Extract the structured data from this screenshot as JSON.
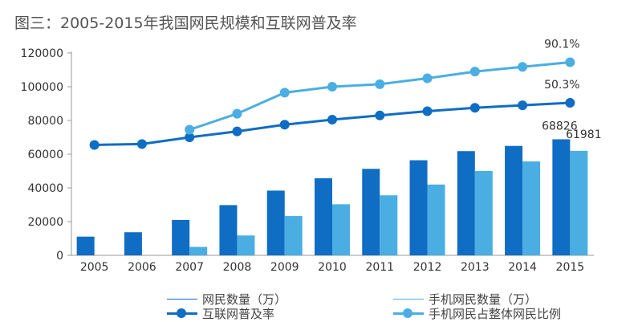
{
  "title": "图三：2005-2015年我国网民规模和互联网普及率",
  "colors": {
    "dark_blue": "#0F6DC4",
    "light_blue": "#4AAEE2",
    "axis": "#9a9a9a",
    "grid": "#e6e6e6",
    "text": "#333333"
  },
  "chart_data": {
    "type": "bar",
    "categories": [
      "2005",
      "2006",
      "2007",
      "2008",
      "2009",
      "2010",
      "2011",
      "2012",
      "2013",
      "2014",
      "2015"
    ],
    "ylim": [
      0,
      120000
    ],
    "yticks": [
      0,
      20000,
      40000,
      60000,
      80000,
      100000,
      120000
    ],
    "grid": false,
    "legend_position": "bottom",
    "series": [
      {
        "name": "网民数量（万）",
        "kind": "bar",
        "color": "#0F6DC4",
        "values": [
          11100,
          13700,
          21000,
          29800,
          38400,
          45700,
          51300,
          56400,
          61800,
          64900,
          68826
        ]
      },
      {
        "name": "手机网民数量（万）",
        "kind": "bar",
        "color": "#4AAEE2",
        "values": [
          null,
          null,
          5000,
          11800,
          23300,
          30300,
          35600,
          42000,
          50000,
          55700,
          61981
        ]
      },
      {
        "name": "互联网普及率",
        "kind": "line",
        "color": "#0F6DC4",
        "values": [
          65500,
          66000,
          70000,
          73500,
          77500,
          80500,
          83000,
          85500,
          87500,
          89000,
          90500
        ]
      },
      {
        "name": "手机网民占整体网民比例",
        "kind": "line",
        "color": "#4AAEE2",
        "values": [
          null,
          null,
          74500,
          84000,
          96500,
          100000,
          101500,
          105000,
          109000,
          111800,
          114500
        ]
      }
    ],
    "annotations": [
      {
        "text": "90.1%",
        "near": "2015 手机网民占整体网民比例"
      },
      {
        "text": "50.3%",
        "near": "2015 互联网普及率"
      },
      {
        "text": "68826",
        "near": "2015 网民数量"
      },
      {
        "text": "61981",
        "near": "2015 手机网民数量"
      }
    ]
  },
  "legend": [
    {
      "label": "网民数量（万）",
      "style": "bar"
    },
    {
      "label": "手机网民数量（万）",
      "style": "bar"
    },
    {
      "label": "互联网普及率",
      "style": "line"
    },
    {
      "label": "手机网民占整体网民比例",
      "style": "line"
    }
  ]
}
